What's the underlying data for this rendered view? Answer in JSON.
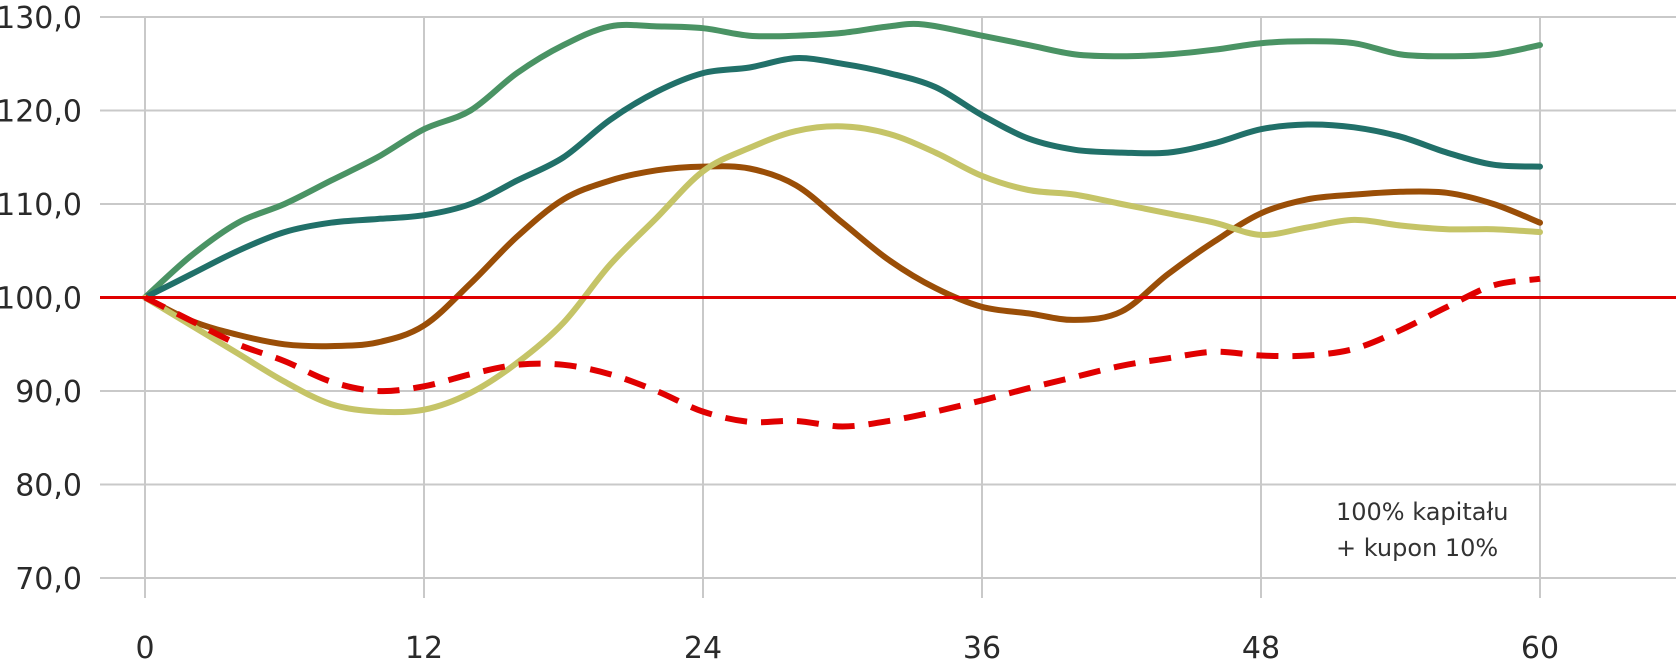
{
  "chart_data": {
    "type": "line",
    "title": "",
    "xlabel": "",
    "ylabel": "",
    "x_ticks": [
      "0",
      "12",
      "24",
      "36",
      "48",
      "60"
    ],
    "y_ticks": [
      "70,0",
      "80,0",
      "90,0",
      "100,0",
      "110,0",
      "120,0",
      "130,0"
    ],
    "xlim": [
      0,
      60
    ],
    "ylim": [
      70,
      130
    ],
    "grid": true,
    "reference_line": {
      "y": 100,
      "color": "#e00000"
    },
    "annotation": [
      "100% kapitału",
      "+ kupon 10%"
    ],
    "series": [
      {
        "color": "#4a9364",
        "style": "solid",
        "points": [
          [
            0,
            100
          ],
          [
            2,
            104.5
          ],
          [
            4,
            108
          ],
          [
            6,
            110
          ],
          [
            8,
            112.5
          ],
          [
            10,
            115
          ],
          [
            12,
            118
          ],
          [
            14,
            120
          ],
          [
            16,
            124
          ],
          [
            18,
            127
          ],
          [
            20,
            129
          ],
          [
            22,
            129
          ],
          [
            24,
            128.8
          ],
          [
            26,
            128
          ],
          [
            28,
            128
          ],
          [
            30,
            128.3
          ],
          [
            32,
            129
          ],
          [
            33.5,
            129.2
          ],
          [
            36,
            128
          ],
          [
            38,
            127
          ],
          [
            40,
            126
          ],
          [
            42,
            125.8
          ],
          [
            44,
            126
          ],
          [
            46,
            126.5
          ],
          [
            48,
            127.2
          ],
          [
            50,
            127.4
          ],
          [
            52,
            127.2
          ],
          [
            54,
            126
          ],
          [
            56,
            125.8
          ],
          [
            58,
            126
          ],
          [
            60,
            127
          ]
        ]
      },
      {
        "color": "#217069",
        "style": "solid",
        "points": [
          [
            0,
            100
          ],
          [
            2,
            102.5
          ],
          [
            4,
            105
          ],
          [
            6,
            107
          ],
          [
            8,
            108
          ],
          [
            10,
            108.4
          ],
          [
            12,
            108.8
          ],
          [
            14,
            110
          ],
          [
            16,
            112.5
          ],
          [
            18,
            115
          ],
          [
            20,
            119
          ],
          [
            22,
            122
          ],
          [
            24,
            124
          ],
          [
            26,
            124.6
          ],
          [
            28,
            125.6
          ],
          [
            30,
            125
          ],
          [
            32,
            124
          ],
          [
            34,
            122.5
          ],
          [
            36,
            119.5
          ],
          [
            38,
            117
          ],
          [
            40,
            115.8
          ],
          [
            42,
            115.5
          ],
          [
            44,
            115.5
          ],
          [
            46,
            116.5
          ],
          [
            48,
            118
          ],
          [
            50,
            118.5
          ],
          [
            52,
            118.2
          ],
          [
            54,
            117.2
          ],
          [
            56,
            115.5
          ],
          [
            58,
            114.2
          ],
          [
            60,
            114
          ]
        ]
      },
      {
        "color": "#9a4e07",
        "style": "solid",
        "points": [
          [
            0,
            100
          ],
          [
            2,
            97.5
          ],
          [
            4,
            96
          ],
          [
            6,
            95
          ],
          [
            8,
            94.8
          ],
          [
            10,
            95.2
          ],
          [
            12,
            97
          ],
          [
            14,
            101.5
          ],
          [
            16,
            106.5
          ],
          [
            18,
            110.5
          ],
          [
            20,
            112.5
          ],
          [
            22,
            113.6
          ],
          [
            24,
            114
          ],
          [
            26,
            113.8
          ],
          [
            28,
            112
          ],
          [
            30,
            108
          ],
          [
            32,
            104
          ],
          [
            34,
            101
          ],
          [
            36,
            99
          ],
          [
            38,
            98.3
          ],
          [
            40,
            97.6
          ],
          [
            42,
            98.5
          ],
          [
            44,
            102.5
          ],
          [
            46,
            106
          ],
          [
            48,
            109
          ],
          [
            50,
            110.5
          ],
          [
            52,
            111
          ],
          [
            54,
            111.3
          ],
          [
            56,
            111.2
          ],
          [
            58,
            110
          ],
          [
            60,
            108
          ]
        ]
      },
      {
        "color": "#c5c467",
        "style": "solid",
        "points": [
          [
            0,
            100
          ],
          [
            2,
            97
          ],
          [
            4,
            94
          ],
          [
            6,
            91
          ],
          [
            8,
            88.6
          ],
          [
            10,
            87.8
          ],
          [
            12,
            88
          ],
          [
            14,
            89.8
          ],
          [
            16,
            93
          ],
          [
            18,
            97.3
          ],
          [
            20,
            103.5
          ],
          [
            22,
            108.5
          ],
          [
            24,
            113.5
          ],
          [
            26,
            116
          ],
          [
            28,
            117.8
          ],
          [
            30,
            118.3
          ],
          [
            32,
            117.5
          ],
          [
            34,
            115.5
          ],
          [
            36,
            113
          ],
          [
            38,
            111.5
          ],
          [
            40,
            111
          ],
          [
            42,
            110
          ],
          [
            44,
            109
          ],
          [
            46,
            108
          ],
          [
            48,
            106.7
          ],
          [
            50,
            107.5
          ],
          [
            52,
            108.3
          ],
          [
            54,
            107.7
          ],
          [
            56,
            107.3
          ],
          [
            58,
            107.3
          ],
          [
            60,
            107
          ]
        ]
      },
      {
        "color": "#e00000",
        "style": "dashed",
        "points": [
          [
            0,
            100
          ],
          [
            2,
            97.5
          ],
          [
            4,
            95
          ],
          [
            6,
            93.2
          ],
          [
            8,
            91
          ],
          [
            10,
            90
          ],
          [
            12,
            90.5
          ],
          [
            14,
            91.8
          ],
          [
            16,
            92.8
          ],
          [
            18,
            92.8
          ],
          [
            20,
            91.8
          ],
          [
            22,
            90
          ],
          [
            24,
            87.8
          ],
          [
            26,
            86.7
          ],
          [
            28,
            86.8
          ],
          [
            30,
            86.2
          ],
          [
            32,
            86.8
          ],
          [
            34,
            87.8
          ],
          [
            36,
            89
          ],
          [
            38,
            90.3
          ],
          [
            40,
            91.5
          ],
          [
            42,
            92.7
          ],
          [
            44,
            93.5
          ],
          [
            46,
            94.2
          ],
          [
            48,
            93.8
          ],
          [
            50,
            93.8
          ],
          [
            52,
            94.5
          ],
          [
            54,
            96.5
          ],
          [
            56,
            99
          ],
          [
            58,
            101.3
          ],
          [
            60,
            102
          ]
        ]
      }
    ]
  },
  "colors": {
    "grid": "#c9c9c9",
    "tick_text": "#2a2a2a",
    "reference": "#e00000"
  }
}
